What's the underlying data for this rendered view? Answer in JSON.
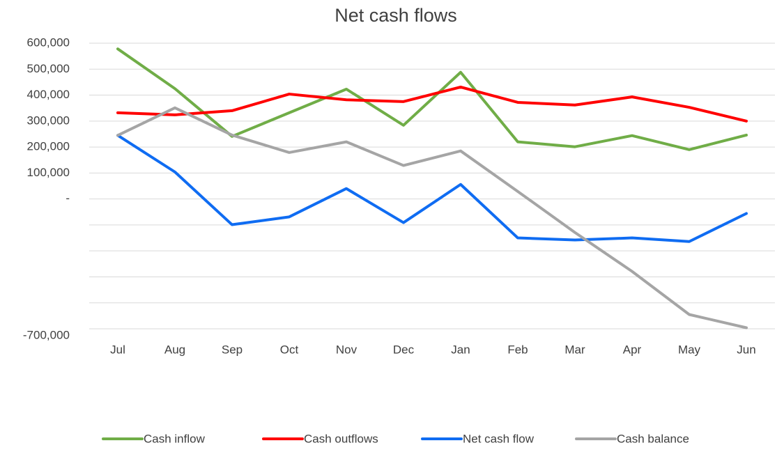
{
  "chart_data": {
    "type": "line",
    "title": "Net cash flows",
    "categories": [
      "Jul",
      "Aug",
      "Sep",
      "Oct",
      "Nov",
      "Dec",
      "Jan",
      "Feb",
      "Mar",
      "Apr",
      "May",
      "Jun"
    ],
    "series": [
      {
        "name": "Cash inflow",
        "color": "#70ad47",
        "values": [
          578000,
          425000,
          241000,
          332000,
          423000,
          284000,
          488000,
          220000,
          201000,
          244000,
          190000,
          246000
        ]
      },
      {
        "name": "Cash outflows",
        "color": "#ff0000",
        "values": [
          332000,
          324000,
          340000,
          404000,
          382000,
          375000,
          431000,
          372000,
          362000,
          393000,
          353000,
          300000
        ]
      },
      {
        "name": "Net cash flow",
        "color": "#0f6cf2",
        "values": [
          245000,
          104000,
          -99000,
          -69000,
          40000,
          -91000,
          56000,
          -150000,
          -158000,
          -150000,
          -164000,
          -56000
        ]
      },
      {
        "name": "Cash balance",
        "color": "#a5a5a5",
        "values": [
          245000,
          351000,
          246000,
          179000,
          220000,
          129000,
          185000,
          29000,
          -129000,
          -279000,
          -445000,
          -496000
        ]
      }
    ],
    "ylim": [
      -500000,
      600000
    ],
    "yticks": [
      {
        "value": 600000,
        "label": "600,000"
      },
      {
        "value": 500000,
        "label": "500,000"
      },
      {
        "value": 400000,
        "label": "400,000"
      },
      {
        "value": 300000,
        "label": "300,000"
      },
      {
        "value": 200000,
        "label": "200,000"
      },
      {
        "value": 100000,
        "label": "100,000"
      },
      {
        "value": 0,
        "label": "-"
      }
    ],
    "ygrid_unlabeled": [
      -100000,
      -200000,
      -300000,
      -400000,
      -500000
    ],
    "bottom_label": "-700,000",
    "grid": true,
    "legend": "bottom"
  }
}
